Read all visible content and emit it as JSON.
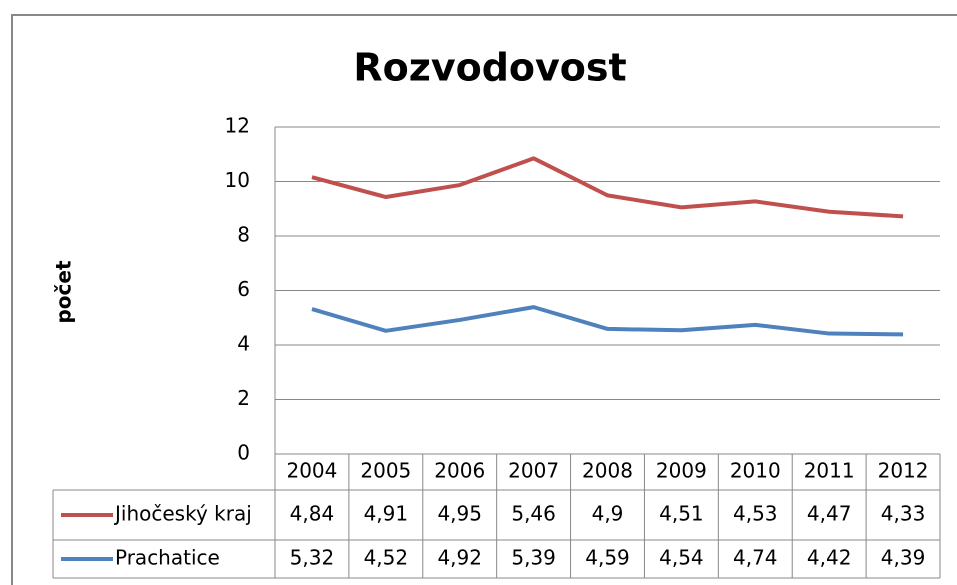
{
  "chart_data": {
    "type": "line",
    "stacked": true,
    "title": "Rozvodovost",
    "y_label": "počet",
    "categories": [
      "2004",
      "2005",
      "2006",
      "2007",
      "2008",
      "2009",
      "2010",
      "2011",
      "2012"
    ],
    "series": [
      {
        "name": "Jihočeský kraj",
        "color": "#c0504d",
        "values": [
          4.84,
          4.91,
          4.95,
          5.46,
          4.9,
          4.51,
          4.53,
          4.47,
          4.33
        ],
        "value_labels": [
          "4,84",
          "4,91",
          "4,95",
          "5,46",
          "4,9",
          "4,51",
          "4,53",
          "4,47",
          "4,33"
        ]
      },
      {
        "name": "Prachatice",
        "color": "#4f81bd",
        "values": [
          5.32,
          4.52,
          4.92,
          5.39,
          4.59,
          4.54,
          4.74,
          4.42,
          4.39
        ],
        "value_labels": [
          "5,32",
          "4,52",
          "4,92",
          "5,39",
          "4,59",
          "4,54",
          "4,74",
          "4,42",
          "4,39"
        ]
      }
    ],
    "ylim": [
      0,
      12
    ],
    "yticks": [
      0,
      2,
      4,
      6,
      8,
      10,
      12
    ],
    "grid": true,
    "data_table": true
  }
}
